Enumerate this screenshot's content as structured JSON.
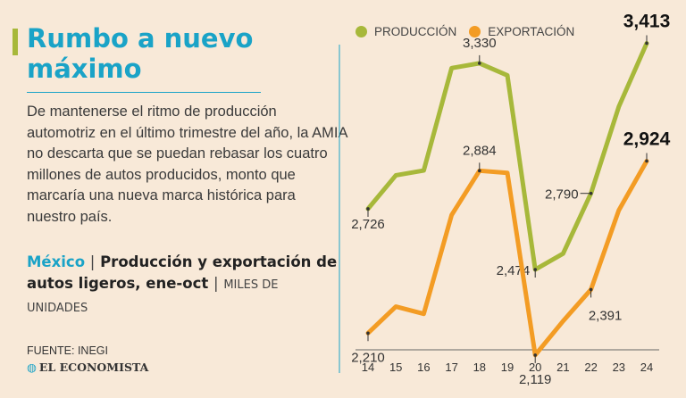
{
  "header": {
    "title": "Rumbo a nuevo máximo",
    "description": "De mantenerse el ritmo de producción automotriz en el último trimestre del año, la AMIA no descarta que se puedan rebasar los cuatro millones de autos producidos, monto que marcaría una nueva marca histórica para nuestro país."
  },
  "subtitle": {
    "country": "México",
    "separator": "|",
    "text": "Producción y exportación de autos ligeros, ene-oct",
    "separator2": "|",
    "units": "MILES DE UNIDADES"
  },
  "footer": {
    "source": "FUENTE: INEGI",
    "brand": "EL ECONOMISTA"
  },
  "colors": {
    "produccion": "#a7b83a",
    "exportacion": "#f39c24",
    "accent": "#1aa3c7",
    "background": "#f8e9d8"
  },
  "chart_data": {
    "type": "line",
    "x": [
      "14",
      "15",
      "16",
      "17",
      "18",
      "19",
      "20",
      "21",
      "22",
      "23",
      "24"
    ],
    "series": [
      {
        "name": "PRODUCCIÓN",
        "color": "#a7b83a",
        "values": [
          2726,
          2865,
          2885,
          3310,
          3330,
          3280,
          2474,
          2540,
          2790,
          3150,
          3413
        ],
        "labels": [
          {
            "index": 0,
            "text": "2,726"
          },
          {
            "index": 4,
            "text": "3,330"
          },
          {
            "index": 6,
            "text": "2,474"
          },
          {
            "index": 8,
            "text": "2,790"
          },
          {
            "index": 10,
            "text": "3,413"
          }
        ]
      },
      {
        "name": "EXPORTACIÓN",
        "color": "#f39c24",
        "values": [
          2210,
          2320,
          2290,
          2700,
          2884,
          2875,
          2119,
          2260,
          2391,
          2720,
          2924
        ],
        "labels": [
          {
            "index": 0,
            "text": "2,210"
          },
          {
            "index": 4,
            "text": "2,884"
          },
          {
            "index": 6,
            "text": "2,119"
          },
          {
            "index": 8,
            "text": "2,391"
          },
          {
            "index": 10,
            "text": "2,924"
          }
        ]
      }
    ],
    "ylim": [
      2000,
      3500
    ],
    "grid": false,
    "legend": "top"
  }
}
